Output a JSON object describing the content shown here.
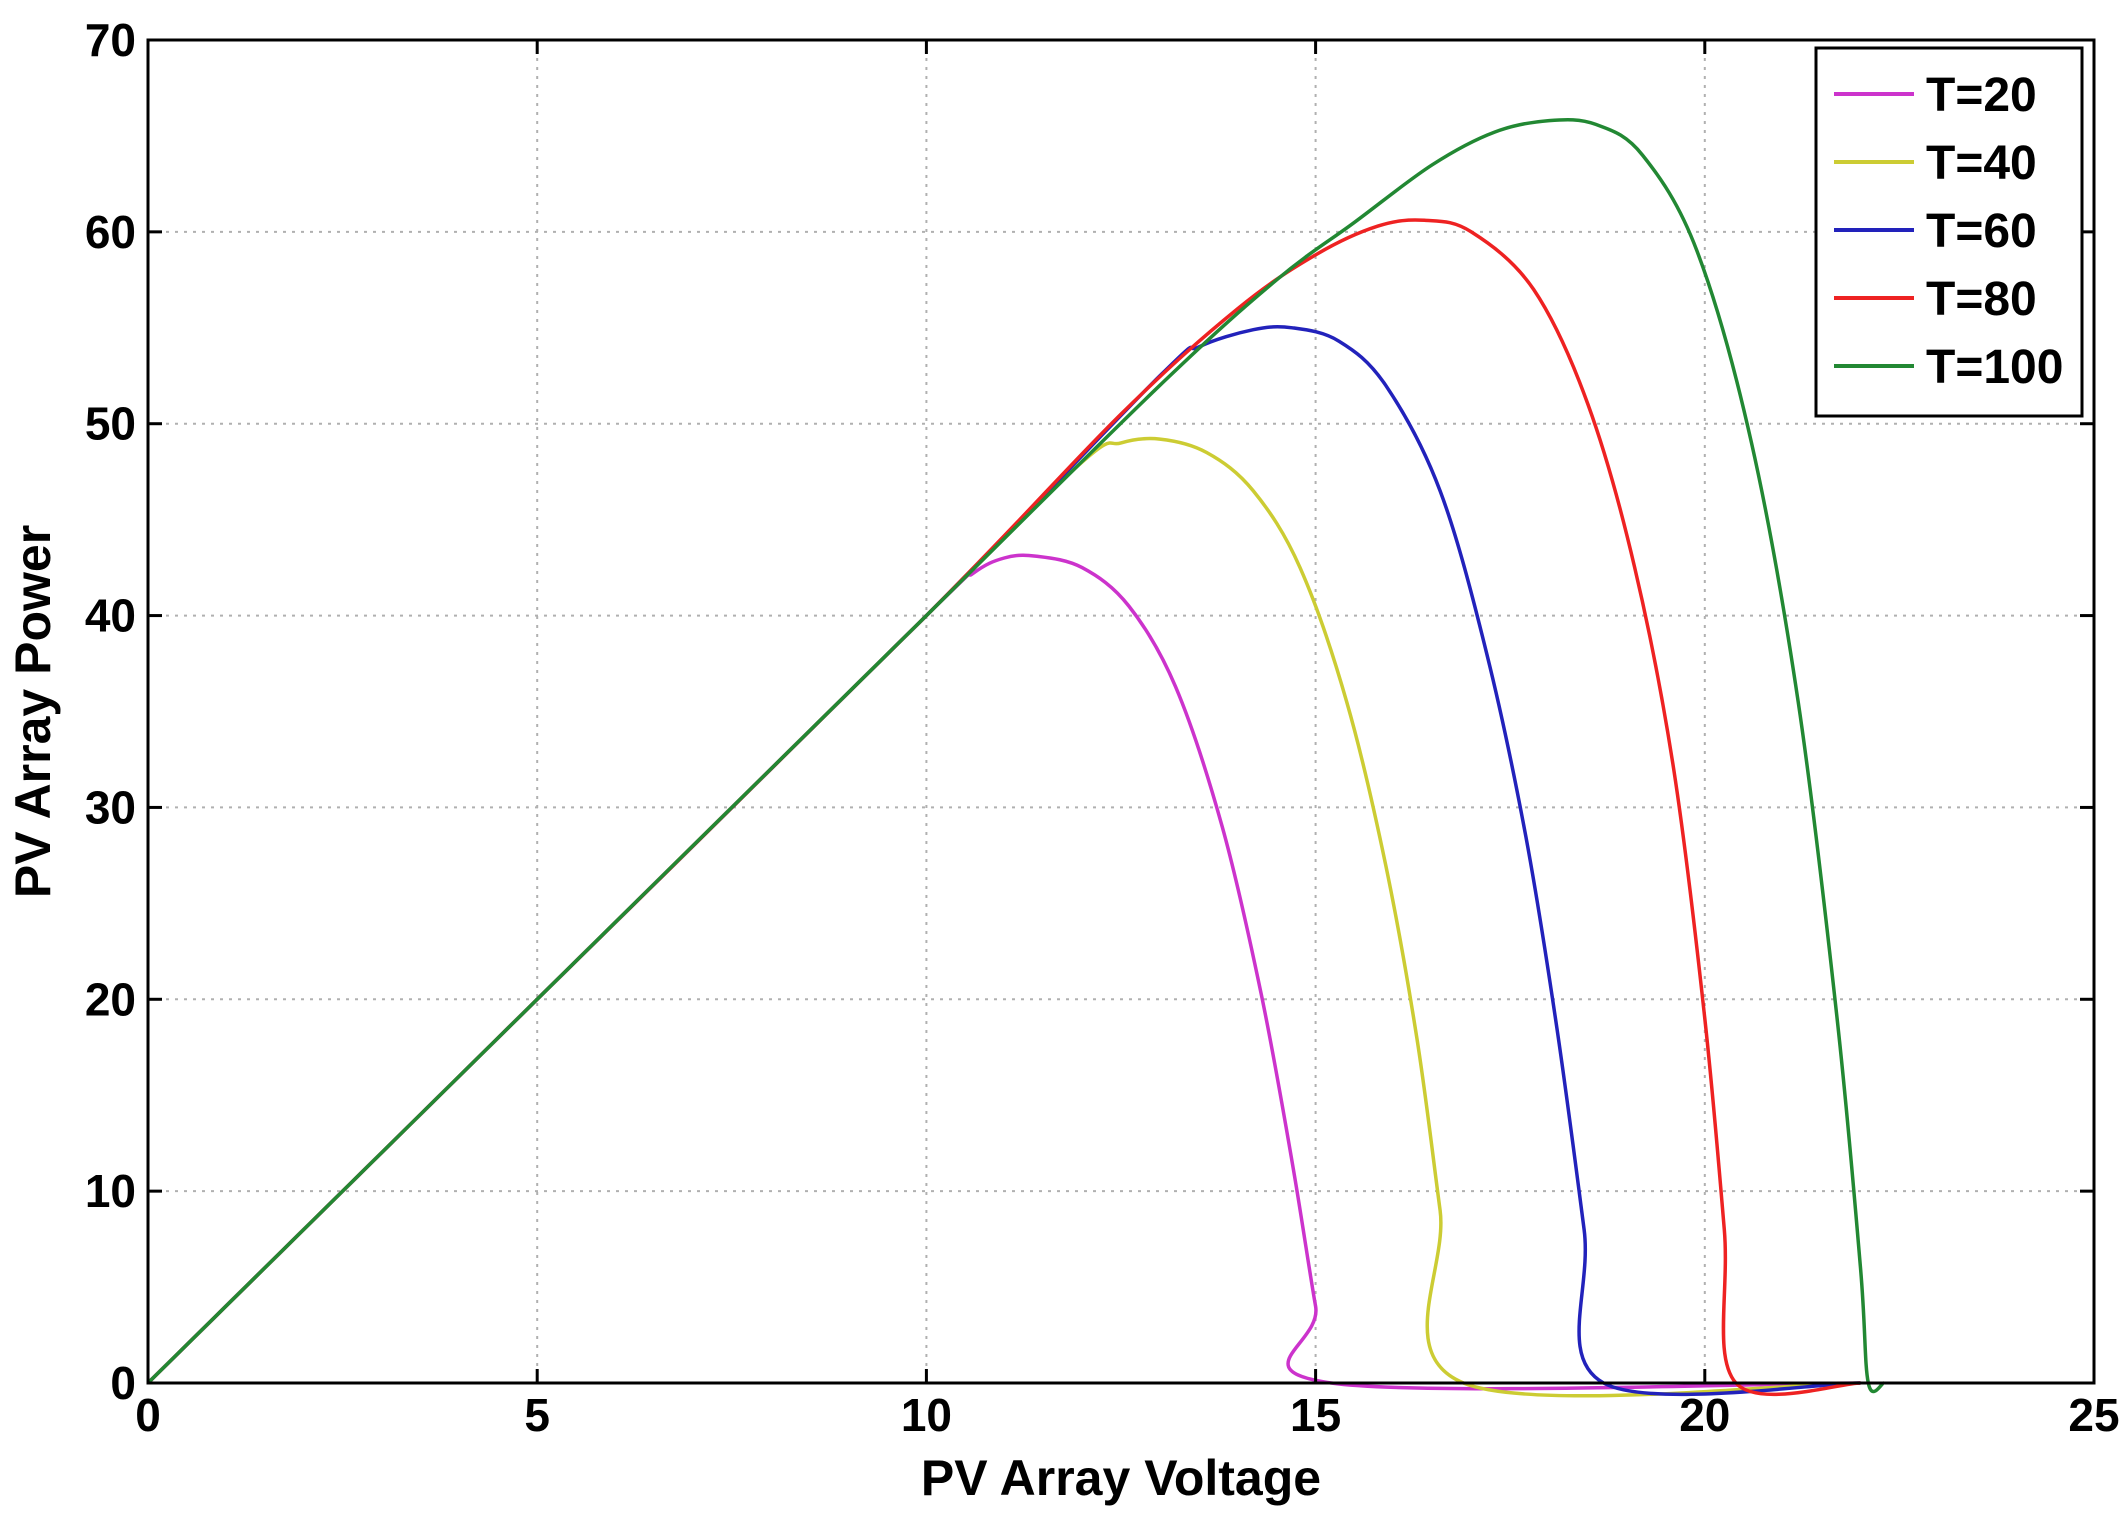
{
  "chart_data": {
    "type": "line",
    "xlabel": "PV Array Voltage",
    "ylabel": "PV Array Power",
    "xlim": [
      0,
      25
    ],
    "ylim": [
      0,
      70
    ],
    "xticks": [
      0,
      5,
      10,
      15,
      20,
      25
    ],
    "yticks": [
      0,
      10,
      20,
      30,
      40,
      50,
      60,
      70
    ],
    "grid": true,
    "legend_position": "top-right",
    "series": [
      {
        "name": "T=20",
        "color": "#cc33cc",
        "x": [
          0,
          5,
          10,
          10.6,
          11.0,
          11.4,
          12.0,
          12.6,
          13.2,
          13.8,
          14.3,
          14.7,
          15.0,
          15.2,
          22.0
        ],
        "y": [
          0,
          20,
          40,
          42.2,
          43.0,
          43.1,
          42.5,
          40.5,
          36.3,
          29.0,
          20.3,
          11.5,
          4.0,
          0,
          0
        ]
      },
      {
        "name": "T=40",
        "color": "#cccc33",
        "x": [
          0,
          5,
          10,
          12.0,
          12.5,
          13.0,
          13.6,
          14.2,
          14.8,
          15.4,
          15.9,
          16.3,
          16.6,
          16.9,
          22.0
        ],
        "y": [
          0,
          20,
          40,
          48.0,
          49.0,
          49.2,
          48.5,
          46.5,
          42.5,
          35.5,
          27.0,
          18.0,
          9.0,
          0,
          0
        ]
      },
      {
        "name": "T=60",
        "color": "#2222bb",
        "x": [
          0,
          5,
          10,
          13.0,
          13.5,
          14.2,
          14.7,
          15.3,
          15.9,
          16.6,
          17.2,
          17.7,
          18.1,
          18.45,
          18.7,
          22.0
        ],
        "y": [
          0,
          20,
          40,
          52.5,
          54.0,
          54.9,
          55.0,
          54.3,
          52.0,
          46.5,
          38.0,
          28.5,
          18.5,
          8.0,
          0,
          0
        ]
      },
      {
        "name": "T=80",
        "color": "#ee2222",
        "x": [
          0,
          5,
          10,
          12.5,
          14.0,
          15.0,
          15.8,
          16.4,
          17.0,
          17.8,
          18.5,
          19.1,
          19.6,
          20.0,
          20.25,
          20.4,
          22.0
        ],
        "y": [
          0,
          20,
          40,
          50.5,
          56.0,
          58.8,
          60.3,
          60.6,
          60.0,
          57.0,
          51.0,
          42.5,
          32.0,
          19.0,
          8.0,
          0,
          0
        ]
      },
      {
        "name": "T=100",
        "color": "#228833",
        "x": [
          0,
          5,
          10,
          13.0,
          14.5,
          15.5,
          16.5,
          17.3,
          18.0,
          18.6,
          19.2,
          19.9,
          20.6,
          21.2,
          21.7,
          22.0,
          22.1,
          22.3
        ],
        "y": [
          0,
          20,
          40,
          52.0,
          57.5,
          60.5,
          63.5,
          65.2,
          65.8,
          65.6,
          64.0,
          59.0,
          49.0,
          35.5,
          19.0,
          6.0,
          0,
          0
        ]
      }
    ]
  }
}
